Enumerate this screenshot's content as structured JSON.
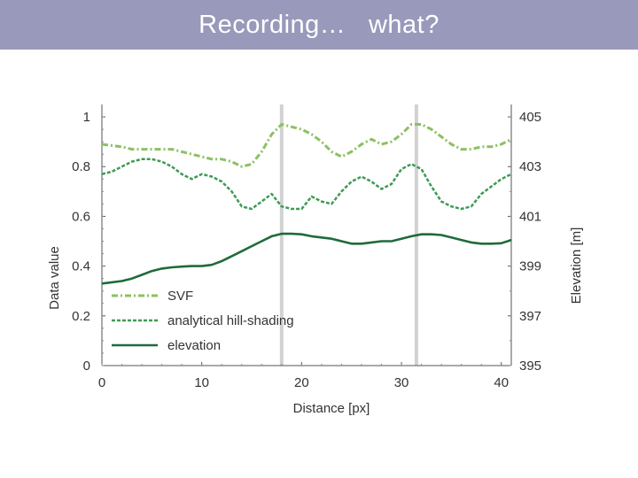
{
  "slide": {
    "title": "Recording…   what?",
    "title_bar_color": "#9999bb"
  },
  "chart_data": {
    "type": "line",
    "xlabel": "Distance [px]",
    "ylabel": "Data value",
    "y2label": "Elevation [m]",
    "xlim": [
      0,
      41
    ],
    "ylim": [
      0,
      1.05
    ],
    "y2lim": [
      395,
      405.5
    ],
    "x_ticks": [
      0,
      10,
      20,
      30,
      40
    ],
    "y_ticks": [
      0,
      0.2,
      0.4,
      0.6,
      0.8,
      1
    ],
    "y_tick_labels": [
      "0",
      "0.2",
      "0.4",
      "0.6",
      "0.8",
      "1"
    ],
    "y2_ticks": [
      395,
      397,
      399,
      401,
      403,
      405
    ],
    "legend_position": "bottom-left",
    "reference_lines_x": [
      18,
      31.5
    ],
    "series": [
      {
        "name": "SVF",
        "axis": "left",
        "style": "dash-dot",
        "color": "#8dc063",
        "x": [
          0,
          2,
          3,
          5,
          7,
          9,
          11,
          12,
          13,
          14,
          15,
          16,
          17,
          18,
          19,
          20,
          21,
          22,
          23,
          24,
          25,
          26,
          27,
          28,
          29,
          30,
          31,
          32,
          33,
          34,
          35,
          36,
          37,
          38,
          39,
          40,
          41
        ],
        "values": [
          0.89,
          0.88,
          0.87,
          0.87,
          0.87,
          0.85,
          0.83,
          0.83,
          0.82,
          0.8,
          0.81,
          0.86,
          0.93,
          0.97,
          0.96,
          0.95,
          0.93,
          0.9,
          0.86,
          0.84,
          0.86,
          0.89,
          0.91,
          0.89,
          0.9,
          0.93,
          0.97,
          0.97,
          0.95,
          0.92,
          0.89,
          0.87,
          0.87,
          0.88,
          0.88,
          0.89,
          0.91
        ]
      },
      {
        "name": "analytical hill-shading",
        "axis": "left",
        "style": "dashed",
        "color": "#3f9a55",
        "x": [
          0,
          1,
          2,
          3,
          4,
          5,
          6,
          7,
          8,
          9,
          10,
          11,
          12,
          13,
          14,
          15,
          16,
          17,
          18,
          19,
          20,
          21,
          22,
          23,
          24,
          25,
          26,
          27,
          28,
          29,
          30,
          31,
          32,
          33,
          34,
          35,
          36,
          37,
          38,
          39,
          40,
          41
        ],
        "values": [
          0.77,
          0.78,
          0.8,
          0.82,
          0.83,
          0.83,
          0.82,
          0.8,
          0.77,
          0.75,
          0.77,
          0.76,
          0.74,
          0.7,
          0.64,
          0.63,
          0.66,
          0.69,
          0.64,
          0.63,
          0.63,
          0.68,
          0.66,
          0.65,
          0.7,
          0.74,
          0.76,
          0.74,
          0.71,
          0.73,
          0.79,
          0.81,
          0.79,
          0.72,
          0.66,
          0.64,
          0.63,
          0.64,
          0.69,
          0.72,
          0.75,
          0.77
        ]
      },
      {
        "name": "elevation",
        "axis": "left",
        "style": "solid",
        "color": "#1e6b3c",
        "x": [
          0,
          1,
          2,
          3,
          4,
          5,
          6,
          7,
          8,
          9,
          10,
          11,
          12,
          13,
          14,
          15,
          16,
          17,
          18,
          19,
          20,
          21,
          22,
          23,
          24,
          25,
          26,
          27,
          28,
          29,
          30,
          31,
          32,
          33,
          34,
          35,
          36,
          37,
          38,
          39,
          40,
          41
        ],
        "values": [
          0.33,
          0.335,
          0.34,
          0.35,
          0.365,
          0.38,
          0.39,
          0.395,
          0.398,
          0.4,
          0.4,
          0.405,
          0.42,
          0.44,
          0.46,
          0.48,
          0.5,
          0.52,
          0.53,
          0.53,
          0.528,
          0.52,
          0.515,
          0.51,
          0.5,
          0.49,
          0.49,
          0.495,
          0.5,
          0.5,
          0.51,
          0.52,
          0.528,
          0.528,
          0.525,
          0.515,
          0.505,
          0.495,
          0.49,
          0.49,
          0.492,
          0.505
        ]
      }
    ]
  }
}
